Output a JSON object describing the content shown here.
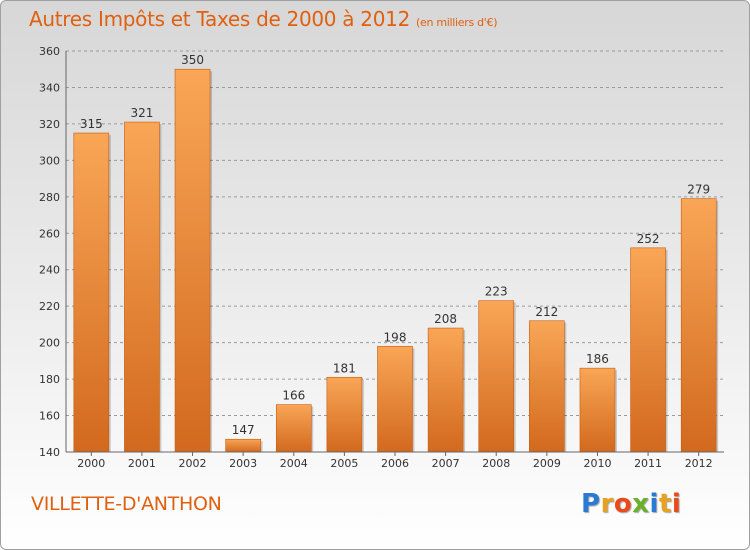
{
  "title": "Autres Impôts et Taxes de 2000 à 2012",
  "unit": "(en milliers d'€)",
  "city": "VILLETTE-D'ANTHON",
  "logo": {
    "letters": [
      "P",
      "r",
      "o",
      "x",
      "i",
      "t",
      "i"
    ],
    "colors": [
      "#2a7ad5",
      "#e8a020",
      "#e84a1a",
      "#6ab02a",
      "#2a7ad5",
      "#e8a020",
      "#e84a1a"
    ]
  },
  "colors": {
    "bar_top": "#f9a656",
    "bar_bottom": "#d2691e",
    "grid": "#9a9a9a",
    "text": "#333333",
    "accent": "#e06010"
  },
  "chart_data": {
    "type": "bar",
    "title": "Autres Impôts et Taxes de 2000 à 2012",
    "xlabel": "",
    "ylabel": "",
    "categories": [
      "2000",
      "2001",
      "2002",
      "2003",
      "2004",
      "2005",
      "2006",
      "2007",
      "2008",
      "2009",
      "2010",
      "2011",
      "2012"
    ],
    "values": [
      315,
      321,
      350,
      147,
      166,
      181,
      198,
      208,
      223,
      212,
      186,
      252,
      279
    ],
    "ylim": [
      140,
      360
    ],
    "yticks": [
      140,
      160,
      180,
      200,
      220,
      240,
      260,
      280,
      300,
      320,
      340,
      360
    ],
    "grid": true
  }
}
